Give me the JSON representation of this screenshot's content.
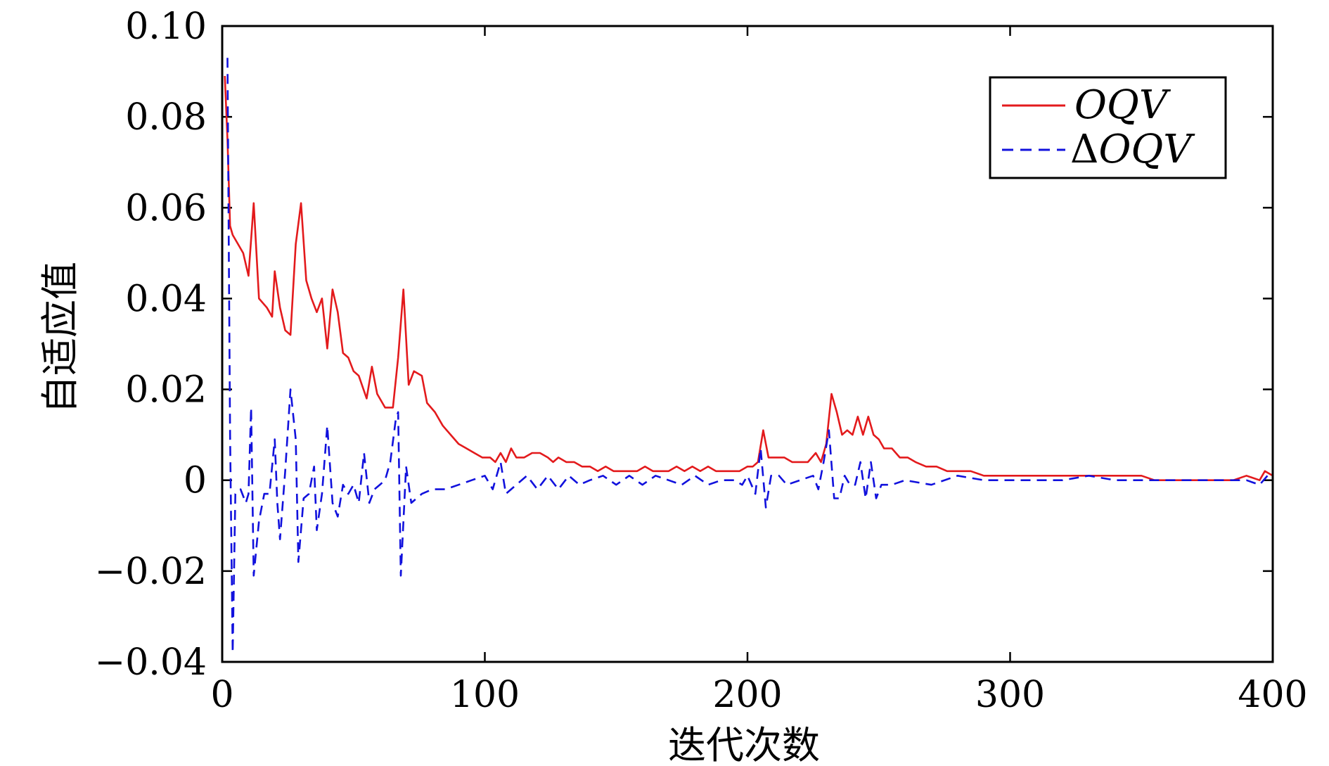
{
  "chart_data": {
    "type": "line",
    "xlabel": "迭代次数",
    "ylabel": "自适应值",
    "xlim": [
      0,
      400
    ],
    "ylim": [
      -0.04,
      0.1
    ],
    "xticks": [
      0,
      100,
      200,
      300,
      400
    ],
    "xtick_labels": [
      "0",
      "100",
      "200",
      "300",
      "400"
    ],
    "yticks": [
      -0.04,
      -0.02,
      0,
      0.02,
      0.04,
      0.06,
      0.08,
      0.1
    ],
    "ytick_labels": [
      "−0.04",
      "−0.02",
      "0",
      "0.02",
      "0.04",
      "0.06",
      "0.08",
      "0.10"
    ],
    "grid": false,
    "legend_position": "top-right",
    "series": [
      {
        "name": "OQV",
        "legend_prefix": "",
        "color": "#e31a1c",
        "dash": "solid",
        "points": [
          [
            1,
            0.089
          ],
          [
            2,
            0.075
          ],
          [
            3,
            0.056
          ],
          [
            4,
            0.054
          ],
          [
            6,
            0.052
          ],
          [
            8,
            0.05
          ],
          [
            10,
            0.045
          ],
          [
            12,
            0.061
          ],
          [
            14,
            0.04
          ],
          [
            17,
            0.038
          ],
          [
            19,
            0.036
          ],
          [
            20,
            0.046
          ],
          [
            22,
            0.038
          ],
          [
            24,
            0.033
          ],
          [
            26,
            0.032
          ],
          [
            28,
            0.052
          ],
          [
            30,
            0.061
          ],
          [
            32,
            0.044
          ],
          [
            34,
            0.04
          ],
          [
            36,
            0.037
          ],
          [
            38,
            0.04
          ],
          [
            40,
            0.029
          ],
          [
            42,
            0.042
          ],
          [
            44,
            0.037
          ],
          [
            46,
            0.028
          ],
          [
            48,
            0.027
          ],
          [
            50,
            0.024
          ],
          [
            52,
            0.023
          ],
          [
            55,
            0.018
          ],
          [
            57,
            0.025
          ],
          [
            59,
            0.019
          ],
          [
            62,
            0.016
          ],
          [
            65,
            0.016
          ],
          [
            67,
            0.027
          ],
          [
            69,
            0.042
          ],
          [
            71,
            0.021
          ],
          [
            73,
            0.024
          ],
          [
            76,
            0.023
          ],
          [
            78,
            0.017
          ],
          [
            81,
            0.015
          ],
          [
            84,
            0.012
          ],
          [
            87,
            0.01
          ],
          [
            90,
            0.008
          ],
          [
            93,
            0.007
          ],
          [
            96,
            0.006
          ],
          [
            99,
            0.005
          ],
          [
            102,
            0.005
          ],
          [
            104,
            0.004
          ],
          [
            106,
            0.006
          ],
          [
            108,
            0.004
          ],
          [
            110,
            0.007
          ],
          [
            112,
            0.005
          ],
          [
            115,
            0.005
          ],
          [
            118,
            0.006
          ],
          [
            121,
            0.006
          ],
          [
            124,
            0.005
          ],
          [
            126,
            0.004
          ],
          [
            128,
            0.005
          ],
          [
            131,
            0.004
          ],
          [
            134,
            0.004
          ],
          [
            137,
            0.003
          ],
          [
            140,
            0.003
          ],
          [
            143,
            0.002
          ],
          [
            146,
            0.003
          ],
          [
            149,
            0.002
          ],
          [
            152,
            0.002
          ],
          [
            155,
            0.002
          ],
          [
            158,
            0.002
          ],
          [
            161,
            0.003
          ],
          [
            164,
            0.002
          ],
          [
            167,
            0.002
          ],
          [
            170,
            0.002
          ],
          [
            173,
            0.003
          ],
          [
            176,
            0.002
          ],
          [
            179,
            0.003
          ],
          [
            182,
            0.002
          ],
          [
            185,
            0.003
          ],
          [
            188,
            0.002
          ],
          [
            191,
            0.002
          ],
          [
            194,
            0.002
          ],
          [
            197,
            0.002
          ],
          [
            200,
            0.003
          ],
          [
            202,
            0.003
          ],
          [
            204,
            0.004
          ],
          [
            206,
            0.011
          ],
          [
            208,
            0.005
          ],
          [
            211,
            0.005
          ],
          [
            214,
            0.005
          ],
          [
            217,
            0.004
          ],
          [
            220,
            0.004
          ],
          [
            223,
            0.004
          ],
          [
            226,
            0.006
          ],
          [
            228,
            0.004
          ],
          [
            230,
            0.008
          ],
          [
            232,
            0.019
          ],
          [
            234,
            0.015
          ],
          [
            236,
            0.01
          ],
          [
            238,
            0.011
          ],
          [
            240,
            0.01
          ],
          [
            242,
            0.014
          ],
          [
            244,
            0.01
          ],
          [
            246,
            0.014
          ],
          [
            248,
            0.01
          ],
          [
            250,
            0.009
          ],
          [
            252,
            0.007
          ],
          [
            255,
            0.007
          ],
          [
            258,
            0.005
          ],
          [
            261,
            0.005
          ],
          [
            264,
            0.004
          ],
          [
            268,
            0.003
          ],
          [
            272,
            0.003
          ],
          [
            276,
            0.002
          ],
          [
            280,
            0.002
          ],
          [
            285,
            0.002
          ],
          [
            290,
            0.001
          ],
          [
            295,
            0.001
          ],
          [
            300,
            0.001
          ],
          [
            305,
            0.001
          ],
          [
            310,
            0.001
          ],
          [
            315,
            0.001
          ],
          [
            320,
            0.001
          ],
          [
            325,
            0.001
          ],
          [
            330,
            0.001
          ],
          [
            335,
            0.001
          ],
          [
            340,
            0.001
          ],
          [
            345,
            0.001
          ],
          [
            350,
            0.001
          ],
          [
            355,
            0.0
          ],
          [
            360,
            0.0
          ],
          [
            365,
            0.0
          ],
          [
            370,
            0.0
          ],
          [
            375,
            0.0
          ],
          [
            380,
            0.0
          ],
          [
            385,
            0.0
          ],
          [
            390,
            0.001
          ],
          [
            395,
            0.0
          ],
          [
            397,
            0.002
          ],
          [
            400,
            0.001
          ]
        ]
      },
      {
        "name": "OQV",
        "legend_prefix": "Δ",
        "color": "#1111dd",
        "dash": "dashed",
        "points": [
          [
            2,
            0.093
          ],
          [
            3,
            0.01
          ],
          [
            4,
            -0.038
          ],
          [
            5,
            -0.003
          ],
          [
            7,
            -0.002
          ],
          [
            9,
            -0.005
          ],
          [
            10,
            -0.003
          ],
          [
            11,
            0.016
          ],
          [
            12,
            -0.021
          ],
          [
            14,
            -0.009
          ],
          [
            16,
            -0.003
          ],
          [
            18,
            -0.003
          ],
          [
            20,
            0.009
          ],
          [
            21,
            -0.005
          ],
          [
            22,
            -0.013
          ],
          [
            24,
            0.002
          ],
          [
            26,
            0.02
          ],
          [
            28,
            0.009
          ],
          [
            29,
            -0.018
          ],
          [
            31,
            -0.004
          ],
          [
            33,
            -0.003
          ],
          [
            35,
            0.003
          ],
          [
            36,
            -0.011
          ],
          [
            38,
            -0.003
          ],
          [
            40,
            0.012
          ],
          [
            42,
            -0.005
          ],
          [
            44,
            -0.008
          ],
          [
            46,
            -0.001
          ],
          [
            48,
            -0.003
          ],
          [
            50,
            -0.001
          ],
          [
            52,
            -0.005
          ],
          [
            54,
            0.006
          ],
          [
            56,
            -0.005
          ],
          [
            58,
            -0.002
          ],
          [
            60,
            -0.001
          ],
          [
            62,
            0.0
          ],
          [
            64,
            0.004
          ],
          [
            66,
            0.013
          ],
          [
            67,
            0.015
          ],
          [
            68,
            -0.021
          ],
          [
            70,
            0.003
          ],
          [
            72,
            -0.005
          ],
          [
            74,
            -0.004
          ],
          [
            76,
            -0.003
          ],
          [
            80,
            -0.002
          ],
          [
            85,
            -0.002
          ],
          [
            90,
            -0.001
          ],
          [
            95,
            0.0
          ],
          [
            100,
            0.001
          ],
          [
            103,
            -0.002
          ],
          [
            106,
            0.004
          ],
          [
            108,
            -0.003
          ],
          [
            112,
            -0.001
          ],
          [
            116,
            0.001
          ],
          [
            120,
            -0.002
          ],
          [
            124,
            0.001
          ],
          [
            128,
            -0.002
          ],
          [
            132,
            0.001
          ],
          [
            136,
            -0.001
          ],
          [
            140,
            0.0
          ],
          [
            145,
            0.001
          ],
          [
            150,
            -0.001
          ],
          [
            155,
            0.001
          ],
          [
            160,
            -0.001
          ],
          [
            165,
            0.001
          ],
          [
            170,
            0.0
          ],
          [
            175,
            -0.001
          ],
          [
            180,
            0.001
          ],
          [
            185,
            -0.001
          ],
          [
            190,
            0.0
          ],
          [
            195,
            0.0
          ],
          [
            198,
            -0.001
          ],
          [
            200,
            0.001
          ],
          [
            203,
            -0.003
          ],
          [
            205,
            0.007
          ],
          [
            207,
            -0.006
          ],
          [
            209,
            0.001
          ],
          [
            212,
            0.001
          ],
          [
            215,
            -0.001
          ],
          [
            220,
            0.0
          ],
          [
            225,
            0.001
          ],
          [
            227,
            -0.002
          ],
          [
            229,
            0.004
          ],
          [
            231,
            0.011
          ],
          [
            233,
            -0.004
          ],
          [
            235,
            -0.004
          ],
          [
            237,
            0.001
          ],
          [
            239,
            -0.001
          ],
          [
            241,
            -0.001
          ],
          [
            243,
            0.004
          ],
          [
            245,
            -0.004
          ],
          [
            247,
            0.004
          ],
          [
            249,
            -0.004
          ],
          [
            251,
            -0.001
          ],
          [
            255,
            -0.001
          ],
          [
            260,
            0.0
          ],
          [
            270,
            -0.001
          ],
          [
            280,
            0.001
          ],
          [
            290,
            0.0
          ],
          [
            300,
            0.0
          ],
          [
            310,
            0.0
          ],
          [
            320,
            0.0
          ],
          [
            330,
            0.001
          ],
          [
            340,
            0.0
          ],
          [
            350,
            0.0
          ],
          [
            360,
            0.0
          ],
          [
            370,
            0.0
          ],
          [
            380,
            0.0
          ],
          [
            390,
            0.0
          ],
          [
            395,
            -0.001
          ],
          [
            398,
            0.001
          ],
          [
            400,
            0.0
          ]
        ]
      }
    ]
  }
}
